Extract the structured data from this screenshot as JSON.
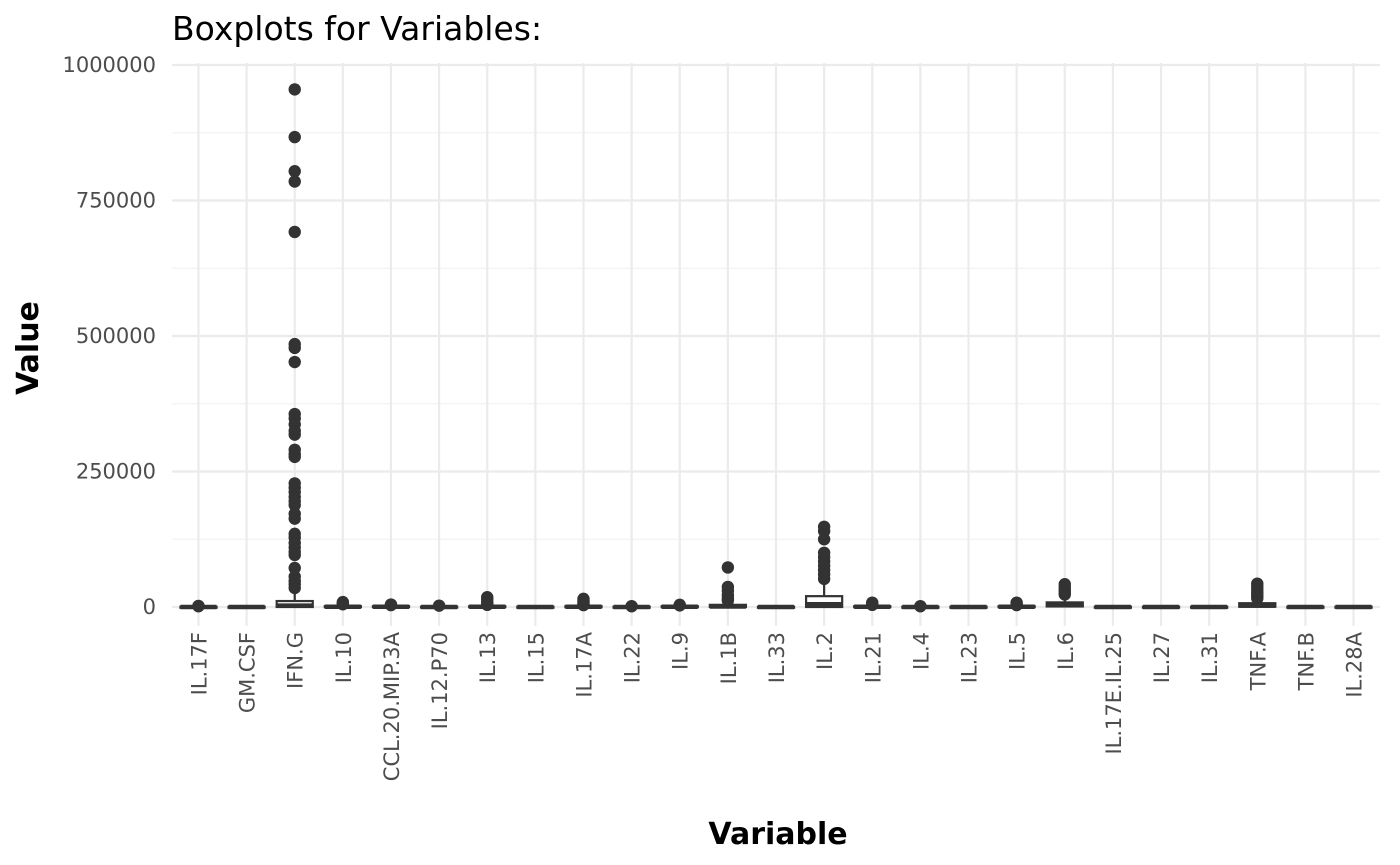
{
  "chart_data": {
    "type": "boxplot",
    "title": "Boxplots for Variables:",
    "xlabel": "Variable",
    "ylabel": "Value",
    "ylim": [
      -20000,
      1000000
    ],
    "yticks": [
      0,
      250000,
      500000,
      750000,
      1000000
    ],
    "ytick_labels": [
      "0",
      "250000",
      "500000",
      "750000",
      "1000000"
    ],
    "grid": true,
    "categories": [
      "IL.17F",
      "GM.CSF",
      "IFN.G",
      "IL.10",
      "CCL.20.MIP.3A",
      "IL.12.P70",
      "IL.13",
      "IL.15",
      "IL.17A",
      "IL.22",
      "IL.9",
      "IL.1B",
      "IL.33",
      "IL.2",
      "IL.21",
      "IL.4",
      "IL.23",
      "IL.5",
      "IL.6",
      "IL.17E.IL.25",
      "IL.27",
      "IL.31",
      "TNF.A",
      "TNF.B",
      "IL.28A"
    ],
    "boxes": [
      {
        "q1": 0,
        "median": 0,
        "q3": 500,
        "wlow": 0,
        "whigh": 1200,
        "outliers": [
          2000,
          1500
        ]
      },
      {
        "q1": 0,
        "median": 0,
        "q3": 500,
        "wlow": 0,
        "whigh": 1200,
        "outliers": []
      },
      {
        "q1": 0,
        "median": 2500,
        "q3": 11000,
        "wlow": 0,
        "whigh": 27000,
        "outliers": [
          955000,
          867000,
          804000,
          785000,
          692000,
          485000,
          478000,
          452000,
          356000,
          348000,
          337000,
          325000,
          318000,
          290000,
          282000,
          277000,
          228000,
          220000,
          212000,
          203000,
          195000,
          188000,
          172000,
          163000,
          135000,
          128000,
          118000,
          110000,
          102000,
          96000,
          72000,
          56000,
          48000,
          42000,
          35000
        ]
      },
      {
        "q1": 0,
        "median": 500,
        "q3": 1500,
        "wlow": 0,
        "whigh": 3500,
        "outliers": [
          9000,
          6500,
          5000
        ]
      },
      {
        "q1": 0,
        "median": 500,
        "q3": 1500,
        "wlow": 0,
        "whigh": 3000,
        "outliers": [
          4500,
          3500
        ]
      },
      {
        "q1": 0,
        "median": 0,
        "q3": 700,
        "wlow": 0,
        "whigh": 1500,
        "outliers": [
          2500
        ]
      },
      {
        "q1": 0,
        "median": 500,
        "q3": 1500,
        "wlow": 0,
        "whigh": 3000,
        "outliers": [
          18000,
          14000,
          9000,
          6000,
          4000
        ]
      },
      {
        "q1": 0,
        "median": 0,
        "q3": 500,
        "wlow": 0,
        "whigh": 1000,
        "outliers": []
      },
      {
        "q1": 0,
        "median": 500,
        "q3": 1500,
        "wlow": 0,
        "whigh": 3000,
        "outliers": [
          15000,
          11000,
          8000,
          5000,
          3500
        ]
      },
      {
        "q1": 0,
        "median": 0,
        "q3": 500,
        "wlow": 0,
        "whigh": 1000,
        "outliers": [
          1500
        ]
      },
      {
        "q1": 0,
        "median": 500,
        "q3": 1500,
        "wlow": 0,
        "whigh": 2500,
        "outliers": [
          4000,
          3000
        ]
      },
      {
        "q1": 0,
        "median": 1000,
        "q3": 4000,
        "wlow": 0,
        "whigh": 9000,
        "outliers": [
          73000,
          37000,
          30000,
          22000,
          16000,
          12000
        ]
      },
      {
        "q1": 0,
        "median": 0,
        "q3": 500,
        "wlow": 0,
        "whigh": 1000,
        "outliers": []
      },
      {
        "q1": 0,
        "median": 5000,
        "q3": 20000,
        "wlow": 0,
        "whigh": 47000,
        "outliers": [
          148000,
          140000,
          125000,
          100000,
          92000,
          84000,
          76000,
          68000,
          60000,
          52000
        ]
      },
      {
        "q1": 0,
        "median": 500,
        "q3": 1500,
        "wlow": 0,
        "whigh": 3000,
        "outliers": [
          8000,
          6000,
          4000
        ]
      },
      {
        "q1": 0,
        "median": 0,
        "q3": 500,
        "wlow": 0,
        "whigh": 1000,
        "outliers": [
          1500
        ]
      },
      {
        "q1": 0,
        "median": 0,
        "q3": 500,
        "wlow": 0,
        "whigh": 1000,
        "outliers": []
      },
      {
        "q1": 0,
        "median": 500,
        "q3": 1500,
        "wlow": 0,
        "whigh": 3000,
        "outliers": [
          8000,
          5000,
          3500
        ]
      },
      {
        "q1": 1000,
        "median": 4000,
        "q3": 8500,
        "wlow": 0,
        "whigh": 18000,
        "outliers": [
          42000,
          36000,
          31000,
          27000,
          23000
        ]
      },
      {
        "q1": 0,
        "median": 0,
        "q3": 500,
        "wlow": 0,
        "whigh": 1000,
        "outliers": []
      },
      {
        "q1": 0,
        "median": 0,
        "q3": 500,
        "wlow": 0,
        "whigh": 1000,
        "outliers": []
      },
      {
        "q1": 0,
        "median": 0,
        "q3": 500,
        "wlow": 0,
        "whigh": 1000,
        "outliers": []
      },
      {
        "q1": 500,
        "median": 2500,
        "q3": 7000,
        "wlow": 0,
        "whigh": 14000,
        "outliers": [
          43000,
          38000,
          33000,
          28000,
          24000,
          20000,
          16000
        ]
      },
      {
        "q1": 0,
        "median": 0,
        "q3": 500,
        "wlow": 0,
        "whigh": 1000,
        "outliers": []
      },
      {
        "q1": 0,
        "median": 0,
        "q3": 500,
        "wlow": 0,
        "whigh": 1000,
        "outliers": []
      }
    ]
  }
}
